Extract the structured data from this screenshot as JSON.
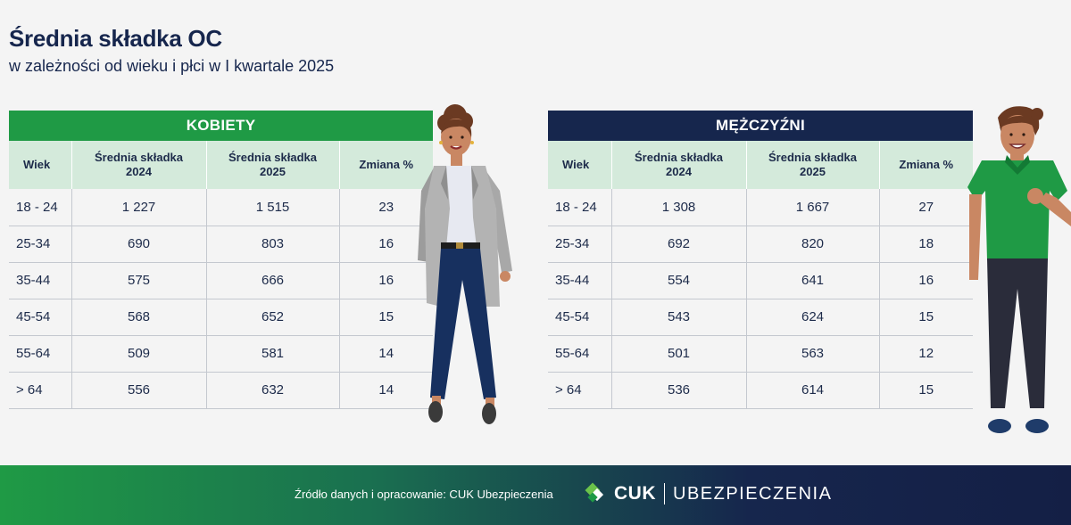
{
  "title": "Średnia składka OC",
  "subtitle": "w zależności od wieku i płci w I kwartale 2025",
  "women": {
    "header": "KOBIETY",
    "columns": [
      {
        "line1": "Wiek",
        "line2": ""
      },
      {
        "line1": "Średnia składka",
        "line2": "2024"
      },
      {
        "line1": "Średnia składka",
        "line2": "2025"
      },
      {
        "line1": "Zmiana %",
        "line2": ""
      }
    ]
  },
  "men": {
    "header": "MĘŻCZYŹNI",
    "columns": [
      {
        "line1": "Wiek",
        "line2": ""
      },
      {
        "line1": "Średnia składka",
        "line2": "2024"
      },
      {
        "line1": "Średnia składka",
        "line2": "2025"
      },
      {
        "line1": "Zmiana %",
        "line2": ""
      }
    ]
  },
  "chart_data": [
    {
      "type": "table",
      "title": "KOBIETY",
      "columns": [
        "Wiek",
        "Średnia składka 2024",
        "Średnia składka 2025",
        "Zmiana %"
      ],
      "rows": [
        [
          "18 - 24",
          "1 227",
          "1 515",
          "23"
        ],
        [
          "25-34",
          "690",
          "803",
          "16"
        ],
        [
          "35-44",
          "575",
          "666",
          "16"
        ],
        [
          "45-54",
          "568",
          "652",
          "15"
        ],
        [
          "55-64",
          "509",
          "581",
          "14"
        ],
        [
          "> 64",
          "556",
          "632",
          "14"
        ]
      ]
    },
    {
      "type": "table",
      "title": "MĘŻCZYŹNI",
      "columns": [
        "Wiek",
        "Średnia składka 2024",
        "Średnia składka 2025",
        "Zmiana %"
      ],
      "rows": [
        [
          "18 - 24",
          "1 308",
          "1 667",
          "27"
        ],
        [
          "25-34",
          "692",
          "820",
          "18"
        ],
        [
          "35-44",
          "554",
          "641",
          "16"
        ],
        [
          "45-54",
          "543",
          "624",
          "15"
        ],
        [
          "55-64",
          "501",
          "563",
          "12"
        ],
        [
          "> 64",
          "536",
          "614",
          "15"
        ]
      ]
    }
  ],
  "footer": {
    "source": "Źródło danych i opracowanie: CUK Ubezpieczenia",
    "logo_brand": "CUK",
    "logo_suffix": "UBEZPIECZENIA"
  },
  "colors": {
    "green": "#1f9a45",
    "navy": "#16264d",
    "header_row": "#d4eadb"
  }
}
